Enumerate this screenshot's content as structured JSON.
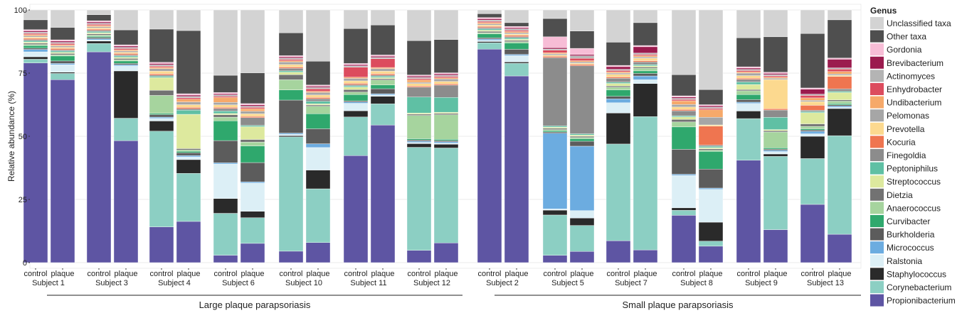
{
  "chart_data": {
    "type": "bar",
    "stacked": true,
    "ylabel": "Relative abundance (%)",
    "ylim": [
      0,
      100
    ],
    "yticks": [
      0,
      25,
      50,
      75,
      100
    ],
    "grid": true,
    "legend_title": "Genus",
    "legend_position": "right",
    "groups": [
      {
        "label": "Large plaque parapsoriasis",
        "subjects": [
          "Subject 1",
          "Subject 3",
          "Subject 4",
          "Subject 6",
          "Subject 10",
          "Subject 11",
          "Subject 12"
        ]
      },
      {
        "label": "Small plaque parapsoriasis",
        "subjects": [
          "Subject 2",
          "Subject 5",
          "Subject 7",
          "Subject 8",
          "Subject 9",
          "Subject 13"
        ]
      }
    ],
    "bar_labels": [
      "control",
      "plaque"
    ],
    "genera": [
      {
        "name": "Propionibacterium",
        "color": "#5e55a3"
      },
      {
        "name": "Corynebacterium",
        "color": "#8ccfc3"
      },
      {
        "name": "Staphylococcus",
        "color": "#2a2a2a"
      },
      {
        "name": "Ralstonia",
        "color": "#dceff6"
      },
      {
        "name": "Micrococcus",
        "color": "#6cace0"
      },
      {
        "name": "Burkholderia",
        "color": "#5c5c5c"
      },
      {
        "name": "Curvibacter",
        "color": "#2fa86d"
      },
      {
        "name": "Anaerococcus",
        "color": "#a6d49e"
      },
      {
        "name": "Dietzia",
        "color": "#727272"
      },
      {
        "name": "Streptococcus",
        "color": "#dde99e"
      },
      {
        "name": "Peptoniphilus",
        "color": "#5fc0a4"
      },
      {
        "name": "Finegoldia",
        "color": "#8c8c8c"
      },
      {
        "name": "Kocuria",
        "color": "#ef7550"
      },
      {
        "name": "Prevotella",
        "color": "#fcd98f"
      },
      {
        "name": "Pelomonas",
        "color": "#a6a6a6"
      },
      {
        "name": "Undibacterium",
        "color": "#f6a96a"
      },
      {
        "name": "Enhydrobacter",
        "color": "#dc4c5e"
      },
      {
        "name": "Actinomyces",
        "color": "#b4b4b4"
      },
      {
        "name": "Brevibacterium",
        "color": "#9b1b4e"
      },
      {
        "name": "Gordonia",
        "color": "#f7bdd6"
      },
      {
        "name": "Other taxa",
        "color": "#4f4f4f"
      },
      {
        "name": "Unclassified taxa",
        "color": "#d3d3d3"
      }
    ],
    "series_order_bottom_to_top": [
      "Propionibacterium",
      "Corynebacterium",
      "Staphylococcus",
      "Ralstonia",
      "Micrococcus",
      "Burkholderia",
      "Curvibacter",
      "Anaerococcus",
      "Dietzia",
      "Streptococcus",
      "Peptoniphilus",
      "Finegoldia",
      "Kocuria",
      "Prevotella",
      "Pelomonas",
      "Undibacterium",
      "Enhydrobacter",
      "Actinomyces",
      "Brevibacterium",
      "Gordonia",
      "Other taxa",
      "Unclassified taxa"
    ],
    "bars": [
      {
        "subject": "Subject 1",
        "sample": "control",
        "values": [
          81,
          1.5,
          1,
          2,
          1,
          0.5,
          1,
          0.5,
          0.5,
          0.5,
          0.5,
          0.5,
          0.5,
          0.5,
          0.5,
          0.5,
          0.5,
          0.5,
          0.5,
          0.5,
          4,
          4
        ]
      },
      {
        "subject": "Subject 1",
        "sample": "plaque",
        "values": [
          73.5,
          2.5,
          0.5,
          3,
          0.5,
          1,
          2,
          0.5,
          0.5,
          0.5,
          0.5,
          0.5,
          0.5,
          0.5,
          0.5,
          0.5,
          0.5,
          0.5,
          0.5,
          0.5,
          5,
          7
        ]
      },
      {
        "subject": "Subject 3",
        "sample": "control",
        "values": [
          88,
          3.5,
          1,
          0.5,
          0.5,
          0.5,
          0.5,
          0.5,
          0.5,
          0.5,
          0.5,
          0.5,
          0.5,
          0.5,
          0.5,
          0.5,
          0.5,
          0.5,
          0.5,
          0.5,
          2.5,
          2
        ]
      },
      {
        "subject": "Subject 3",
        "sample": "plaque",
        "values": [
          49,
          9,
          19,
          2,
          0.5,
          0.5,
          1,
          0.5,
          0.5,
          0.5,
          0.5,
          0.5,
          0.5,
          0.5,
          0.5,
          0.5,
          0.5,
          0.5,
          0.5,
          0.5,
          6,
          8
        ]
      },
      {
        "subject": "Subject 4",
        "sample": "control",
        "values": [
          14,
          37.5,
          4,
          1,
          0.5,
          1,
          0.5,
          7,
          2,
          5,
          0.5,
          0.5,
          0.5,
          1,
          1,
          0.5,
          0.5,
          0.5,
          0.5,
          0.5,
          13,
          7.5
        ]
      },
      {
        "subject": "Subject 4",
        "sample": "plaque",
        "values": [
          15,
          17.5,
          5,
          1,
          0.5,
          1,
          0.5,
          0.5,
          0.5,
          12.5,
          1.5,
          0.5,
          0.5,
          1,
          1,
          1,
          0.5,
          0.5,
          0.5,
          0.5,
          23,
          7.5
        ]
      },
      {
        "subject": "Subject 6",
        "sample": "control",
        "values": [
          3,
          17,
          6,
          14,
          0.5,
          9,
          8,
          1.5,
          1,
          0.5,
          1,
          1,
          0.5,
          1,
          1,
          2,
          0.5,
          0.5,
          0.5,
          0.5,
          7,
          26.5
        ]
      },
      {
        "subject": "Subject 6",
        "sample": "plaque",
        "values": [
          7.5,
          10,
          2.5,
          11,
          0.5,
          7.5,
          6.5,
          1.5,
          1,
          5,
          0.5,
          3,
          0.5,
          1,
          1,
          1,
          0.5,
          0.5,
          0.5,
          0.5,
          12,
          24.5
        ]
      },
      {
        "subject": "Subject 10",
        "sample": "control",
        "values": [
          4.5,
          45,
          0.5,
          0.5,
          0.5,
          13,
          4,
          4,
          2,
          1,
          0.5,
          1,
          0.5,
          1,
          1,
          0.5,
          0.5,
          0.5,
          0.5,
          0.5,
          9,
          9
        ]
      },
      {
        "subject": "Subject 10",
        "sample": "plaque",
        "values": [
          8,
          21.5,
          7.5,
          9,
          1.5,
          6,
          6,
          3,
          0.5,
          0.5,
          1,
          1,
          0.5,
          1,
          1,
          0.5,
          1,
          0.5,
          0.5,
          0.5,
          9.5,
          20.5
        ]
      },
      {
        "subject": "Subject 11",
        "sample": "control",
        "values": [
          43,
          15.5,
          2.5,
          3,
          0.5,
          0.5,
          2.5,
          1,
          1,
          1,
          0.5,
          0.5,
          0.5,
          1,
          1,
          0.5,
          4,
          0.5,
          0.5,
          0.5,
          14,
          7.5
        ]
      },
      {
        "subject": "Subject 11",
        "sample": "plaque",
        "values": [
          55,
          8.5,
          3,
          0.5,
          0.5,
          2,
          1.5,
          2,
          0.5,
          0.5,
          0.5,
          0.5,
          0.5,
          1,
          1,
          0.5,
          3.5,
          0.5,
          0.5,
          0.5,
          12,
          6
        ]
      },
      {
        "subject": "Subject 12",
        "sample": "control",
        "values": [
          5,
          42,
          1.5,
          0.5,
          0.5,
          0.5,
          0.5,
          9.5,
          0.5,
          0.5,
          6.5,
          4,
          0.5,
          1,
          0.5,
          1,
          0.5,
          0.5,
          0.5,
          0.5,
          14,
          12.5
        ]
      },
      {
        "subject": "Subject 12",
        "sample": "plaque",
        "values": [
          8,
          38.5,
          1.5,
          0.5,
          0.5,
          0.5,
          0.5,
          10,
          0.5,
          0.5,
          6,
          5,
          0.5,
          1,
          1,
          0.5,
          0.5,
          0.5,
          0.5,
          0.5,
          13.5,
          12
        ]
      },
      {
        "subject": "Subject 2",
        "sample": "control",
        "values": [
          84.5,
          2.5,
          0.5,
          0.5,
          0.5,
          0.5,
          1.5,
          0.5,
          0.5,
          0.5,
          0.5,
          0.5,
          0.5,
          0.5,
          0.5,
          0.5,
          0.5,
          0.5,
          0.5,
          0.5,
          1.5,
          1.5
        ]
      },
      {
        "subject": "Subject 2",
        "sample": "plaque",
        "values": [
          73.5,
          5,
          0.5,
          2.5,
          0.5,
          2,
          2.5,
          0.5,
          0.5,
          0.5,
          0.5,
          0.5,
          0.5,
          0.5,
          0.5,
          0.5,
          0.5,
          0.5,
          0.5,
          0.5,
          1.5,
          5
        ]
      },
      {
        "subject": "Subject 5",
        "sample": "control",
        "values": [
          3,
          16.5,
          2,
          0.5,
          31,
          0.5,
          0.5,
          0.5,
          0.5,
          0.5,
          0.5,
          28,
          0.5,
          0.5,
          0.5,
          0.5,
          1,
          0.5,
          0.5,
          4.5,
          7.5,
          3.5
        ]
      },
      {
        "subject": "Subject 5",
        "sample": "plaque",
        "values": [
          4.5,
          10.5,
          3,
          3,
          26,
          2,
          1,
          0.5,
          0.5,
          0.5,
          0.5,
          27.5,
          0.5,
          0.5,
          0.5,
          0.5,
          1,
          1,
          0.5,
          2.5,
          7,
          8.5
        ]
      },
      {
        "subject": "Subject 7",
        "sample": "control",
        "values": [
          8.5,
          37.5,
          12,
          4,
          1.5,
          1,
          2.5,
          1,
          0.5,
          1,
          0.5,
          1.5,
          0.5,
          1,
          0.5,
          0.5,
          0.5,
          0.5,
          1,
          0.5,
          9,
          12.5
        ]
      },
      {
        "subject": "Subject 7",
        "sample": "plaque",
        "values": [
          5,
          52.5,
          13,
          1.5,
          1.5,
          1,
          1,
          1,
          0.5,
          0.5,
          0.5,
          1,
          0.5,
          1,
          0.5,
          0.5,
          0.5,
          0.5,
          2.5,
          0.5,
          9,
          5
        ]
      },
      {
        "subject": "Subject 8",
        "sample": "control",
        "values": [
          19,
          2,
          1,
          13,
          0.5,
          10,
          9,
          2,
          1,
          1,
          0.5,
          2,
          0.5,
          1,
          1,
          1.5,
          0.5,
          0.5,
          0.5,
          0.5,
          8.5,
          26
        ]
      },
      {
        "subject": "Subject 8",
        "sample": "plaque",
        "values": [
          6.5,
          2,
          7.5,
          13,
          0.5,
          7.5,
          7,
          0.5,
          0.5,
          0.5,
          0.5,
          0.5,
          7.5,
          0.5,
          3,
          3,
          0.5,
          0.5,
          0.5,
          0.5,
          6,
          31.5
        ]
      },
      {
        "subject": "Subject 9",
        "sample": "control",
        "values": [
          40.5,
          16.5,
          3,
          3,
          0.5,
          1,
          2,
          1.5,
          0.5,
          2,
          1,
          1,
          0.5,
          1,
          1,
          0.5,
          0.5,
          0.5,
          0.5,
          0.5,
          11.5,
          11
        ]
      },
      {
        "subject": "Subject 9",
        "sample": "plaque",
        "values": [
          13.5,
          30,
          1,
          1,
          0.5,
          0.5,
          0.5,
          6.5,
          0.5,
          0.5,
          5,
          3,
          0.5,
          12,
          0.5,
          0.5,
          0.5,
          0.5,
          0.5,
          0.5,
          14.5,
          11
        ]
      },
      {
        "subject": "Subject 13",
        "sample": "control",
        "values": [
          23.5,
          18.5,
          9,
          1,
          1,
          0.5,
          0.5,
          1,
          1,
          4.5,
          0.5,
          0.5,
          2,
          1.5,
          0.5,
          1,
          1,
          0.5,
          2,
          0.5,
          22,
          9.5
        ]
      },
      {
        "subject": "Subject 13",
        "sample": "plaque",
        "values": [
          11.5,
          40,
          11,
          0.5,
          0.5,
          0.5,
          0.5,
          1,
          0.5,
          3,
          0.5,
          1,
          5,
          0.5,
          0.5,
          1,
          1,
          0.5,
          3.5,
          0.5,
          15.5,
          4
        ]
      }
    ]
  }
}
